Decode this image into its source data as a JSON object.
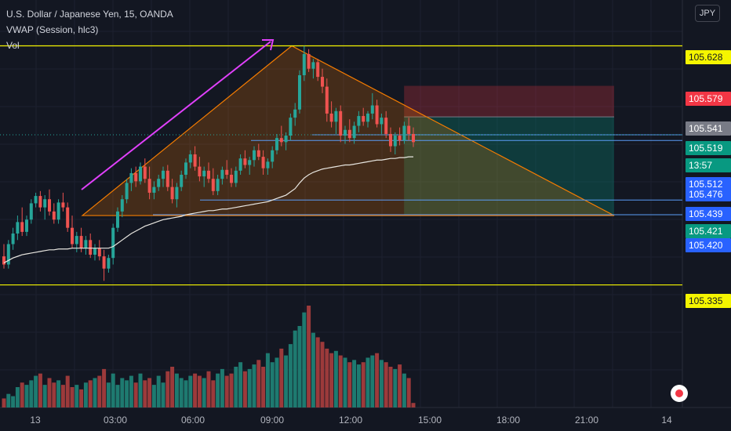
{
  "legend": {
    "symbol": "U.S. Dollar / Japanese Yen, 15, OANDA",
    "indicator": "VWAP (Session, hlc3)",
    "volume": "Vol"
  },
  "currency_badge": "JPY",
  "colors": {
    "background": "#131722",
    "up": "#26a69a",
    "down": "#ef5350",
    "up_volume": "#1e7a70",
    "down_volume": "#9c3a3b",
    "yellow_level": "#f5f500",
    "blue_level": "#2962ff",
    "triangle": "#f57c00",
    "arrow": "#e040fb",
    "vwap": "#e8e6e0"
  },
  "chart_data": {
    "type": "candlestick",
    "x_ticks": [
      "13",
      "03:00",
      "06:00",
      "09:00",
      "12:00",
      "15:00",
      "18:00",
      "21:00",
      "14"
    ],
    "y_range": [
      105.3,
      105.665
    ],
    "price_labels": [
      {
        "value": 105.628,
        "label": "105.628",
        "style": "yellow"
      },
      {
        "value": 105.579,
        "label": "105.579",
        "style": "red"
      },
      {
        "value": 105.541,
        "label": "105.541",
        "style": "gray"
      },
      {
        "value": 105.519,
        "label": "105.519",
        "style": "teal"
      },
      {
        "value": 105.505,
        "label": "13:57",
        "style": "teal"
      },
      {
        "value": 105.512,
        "label": "105.512",
        "style": "blue"
      },
      {
        "value": 105.476,
        "label": "105.476",
        "style": "blue"
      },
      {
        "value": 105.439,
        "label": "105.439",
        "style": "blue"
      },
      {
        "value": 105.421,
        "label": "105.421",
        "style": "teal"
      },
      {
        "value": 105.42,
        "label": "105.420",
        "style": "blue"
      },
      {
        "value": 105.335,
        "label": "105.335",
        "style": "yellow"
      }
    ],
    "horizontal_levels": [
      105.628,
      105.335
    ],
    "candles": [
      [
        105.37,
        105.385,
        105.355,
        105.36
      ],
      [
        105.36,
        105.39,
        105.355,
        105.385
      ],
      [
        105.385,
        105.405,
        105.378,
        105.398
      ],
      [
        105.398,
        105.42,
        105.39,
        105.412
      ],
      [
        105.412,
        105.43,
        105.395,
        105.4
      ],
      [
        105.4,
        105.42,
        105.395,
        105.415
      ],
      [
        105.415,
        105.44,
        105.41,
        105.435
      ],
      [
        105.435,
        105.448,
        105.43,
        105.444
      ],
      [
        105.444,
        105.45,
        105.425,
        105.43
      ],
      [
        105.43,
        105.445,
        105.415,
        105.44
      ],
      [
        105.44,
        105.452,
        105.42,
        105.425
      ],
      [
        105.425,
        105.435,
        105.41,
        105.415
      ],
      [
        105.415,
        105.44,
        105.41,
        105.436
      ],
      [
        105.436,
        105.448,
        105.425,
        105.43
      ],
      [
        105.43,
        105.436,
        105.4,
        105.405
      ],
      [
        105.405,
        105.42,
        105.38,
        105.385
      ],
      [
        105.385,
        105.4,
        105.375,
        105.395
      ],
      [
        105.395,
        105.405,
        105.375,
        105.38
      ],
      [
        105.38,
        105.395,
        105.372,
        105.39
      ],
      [
        105.39,
        105.398,
        105.368,
        105.372
      ],
      [
        105.372,
        105.385,
        105.365,
        105.38
      ],
      [
        105.38,
        105.39,
        105.365,
        105.37
      ],
      [
        105.37,
        105.378,
        105.34,
        105.355
      ],
      [
        105.355,
        105.372,
        105.35,
        105.368
      ],
      [
        105.368,
        105.41,
        105.36,
        105.405
      ],
      [
        105.405,
        105.43,
        105.4,
        105.425
      ],
      [
        105.425,
        105.445,
        105.418,
        105.44
      ],
      [
        105.44,
        105.465,
        105.435,
        105.46
      ],
      [
        105.46,
        105.478,
        105.45,
        105.472
      ],
      [
        105.472,
        105.48,
        105.455,
        105.462
      ],
      [
        105.462,
        105.485,
        105.458,
        105.48
      ],
      [
        105.48,
        105.49,
        105.46,
        105.465
      ],
      [
        105.465,
        105.48,
        105.44,
        105.448
      ],
      [
        105.448,
        105.462,
        105.44,
        105.455
      ],
      [
        105.455,
        105.47,
        105.45,
        105.465
      ],
      [
        105.465,
        105.48,
        105.455,
        105.475
      ],
      [
        105.475,
        105.482,
        105.45,
        105.455
      ],
      [
        105.455,
        105.465,
        105.435,
        105.44
      ],
      [
        105.44,
        105.46,
        105.43,
        105.455
      ],
      [
        105.455,
        105.475,
        105.45,
        105.47
      ],
      [
        105.47,
        105.49,
        105.465,
        105.485
      ],
      [
        105.485,
        105.5,
        105.478,
        105.495
      ],
      [
        105.495,
        105.505,
        105.475,
        105.48
      ],
      [
        105.48,
        105.492,
        105.462,
        105.468
      ],
      [
        105.468,
        105.48,
        105.455,
        105.475
      ],
      [
        105.475,
        105.485,
        105.46,
        105.465
      ],
      [
        105.465,
        105.478,
        105.445,
        105.45
      ],
      [
        105.45,
        105.47,
        105.445,
        105.465
      ],
      [
        105.465,
        105.48,
        105.458,
        105.476
      ],
      [
        105.476,
        105.488,
        105.465,
        105.47
      ],
      [
        105.47,
        105.478,
        105.455,
        105.46
      ],
      [
        105.46,
        105.48,
        105.455,
        105.475
      ],
      [
        105.475,
        105.495,
        105.47,
        105.49
      ],
      [
        105.49,
        105.5,
        105.478,
        105.482
      ],
      [
        105.482,
        105.492,
        105.47,
        105.488
      ],
      [
        105.488,
        105.505,
        105.48,
        105.5
      ],
      [
        105.5,
        105.508,
        105.488,
        105.492
      ],
      [
        105.492,
        105.5,
        105.47,
        105.478
      ],
      [
        105.478,
        105.49,
        105.47,
        105.486
      ],
      [
        105.486,
        105.505,
        105.478,
        105.5
      ],
      [
        105.5,
        105.52,
        105.495,
        105.515
      ],
      [
        105.515,
        105.53,
        105.505,
        105.51
      ],
      [
        105.51,
        105.522,
        105.5,
        105.518
      ],
      [
        105.518,
        105.545,
        105.512,
        105.54
      ],
      [
        105.54,
        105.558,
        105.53,
        105.55
      ],
      [
        105.55,
        105.598,
        105.545,
        105.592
      ],
      [
        105.592,
        105.628,
        105.585,
        105.618
      ],
      [
        105.618,
        105.624,
        105.596,
        105.6
      ],
      [
        105.6,
        105.612,
        105.588,
        105.608
      ],
      [
        105.608,
        105.612,
        105.585,
        105.59
      ],
      [
        105.59,
        105.6,
        105.57,
        105.578
      ],
      [
        105.578,
        105.588,
        105.535,
        105.545
      ],
      [
        105.545,
        105.56,
        105.528,
        105.535
      ],
      [
        105.535,
        105.552,
        105.52,
        105.548
      ],
      [
        105.548,
        105.555,
        105.51,
        105.518
      ],
      [
        105.518,
        105.53,
        105.508,
        105.525
      ],
      [
        105.525,
        105.538,
        105.51,
        105.515
      ],
      [
        105.515,
        105.535,
        105.508,
        105.53
      ],
      [
        105.53,
        105.548,
        105.522,
        105.542
      ],
      [
        105.542,
        105.552,
        105.53,
        105.535
      ],
      [
        105.535,
        105.548,
        105.528,
        105.545
      ],
      [
        105.545,
        105.57,
        105.538,
        105.555
      ],
      [
        105.555,
        105.562,
        105.528,
        105.532
      ],
      [
        105.532,
        105.545,
        105.52,
        105.54
      ],
      [
        105.54,
        105.548,
        105.515,
        105.52
      ],
      [
        105.52,
        105.528,
        105.498,
        105.505
      ],
      [
        105.505,
        105.522,
        105.495,
        105.518
      ],
      [
        105.518,
        105.528,
        105.506,
        105.512
      ],
      [
        105.512,
        105.535,
        105.508,
        105.53
      ],
      [
        105.53,
        105.54,
        105.512,
        105.52
      ],
      [
        105.52,
        105.528,
        105.504,
        105.51
      ]
    ],
    "volume": [
      8,
      12,
      10,
      18,
      22,
      20,
      24,
      28,
      30,
      20,
      26,
      22,
      24,
      20,
      28,
      18,
      20,
      16,
      22,
      24,
      26,
      28,
      34,
      22,
      30,
      20,
      26,
      24,
      28,
      22,
      30,
      24,
      26,
      20,
      28,
      22,
      32,
      36,
      30,
      26,
      24,
      28,
      30,
      28,
      26,
      32,
      24,
      30,
      34,
      28,
      30,
      36,
      40,
      32,
      34,
      38,
      42,
      36,
      48,
      40,
      44,
      52,
      46,
      56,
      68,
      72,
      84,
      90,
      66,
      62,
      58,
      52,
      48,
      50,
      46,
      44,
      40,
      42,
      38,
      40,
      44,
      46,
      48,
      42,
      40,
      36,
      34,
      38,
      30,
      26,
      4
    ],
    "vwap": [
      105.362,
      105.365,
      105.368,
      105.37,
      105.372,
      105.373,
      105.374,
      105.375,
      105.376,
      105.377,
      105.378,
      105.378,
      105.379,
      105.379,
      105.379,
      105.38,
      105.38,
      105.38,
      105.38,
      105.38,
      105.38,
      105.38,
      105.38,
      105.38,
      105.382,
      105.386,
      105.39,
      105.394,
      105.398,
      105.401,
      105.404,
      105.407,
      105.409,
      105.411,
      105.413,
      105.415,
      105.416,
      105.417,
      105.418,
      105.419,
      105.421,
      105.422,
      105.423,
      105.424,
      105.425,
      105.426,
      105.426,
      105.427,
      105.428,
      105.428,
      105.429,
      105.43,
      105.431,
      105.432,
      105.433,
      105.434,
      105.435,
      105.436,
      105.437,
      105.439,
      105.441,
      105.443,
      105.445,
      105.449,
      105.453,
      105.46,
      105.466,
      105.47,
      105.473,
      105.475,
      105.477,
      105.478,
      105.479,
      105.48,
      105.481,
      105.482,
      105.482,
      105.483,
      105.484,
      105.485,
      105.486,
      105.487,
      105.488,
      105.488,
      105.489,
      105.49,
      105.49,
      105.491,
      105.491,
      105.492,
      105.492
    ]
  }
}
